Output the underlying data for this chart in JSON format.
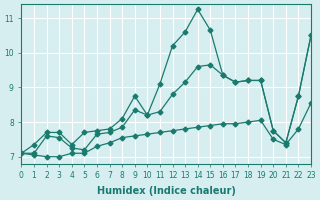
{
  "xlabel": "Humidex (Indice chaleur)",
  "ylabel": "",
  "xlim": [
    0,
    23
  ],
  "ylim": [
    6.8,
    11.4
  ],
  "xticks": [
    0,
    1,
    2,
    3,
    4,
    5,
    6,
    7,
    8,
    9,
    10,
    11,
    12,
    13,
    14,
    15,
    16,
    17,
    18,
    19,
    20,
    21,
    22,
    23
  ],
  "yticks": [
    7,
    8,
    9,
    10,
    11
  ],
  "bg_color": "#d6eef0",
  "line_color": "#1a7a6e",
  "grid_color": "#ffffff",
  "series": {
    "max": {
      "x": [
        0,
        1,
        2,
        3,
        4,
        5,
        6,
        7,
        8,
        9,
        10,
        11,
        12,
        13,
        14,
        15,
        16,
        17,
        18,
        19,
        20,
        21,
        22,
        23
      ],
      "y": [
        7.1,
        7.35,
        7.7,
        7.7,
        7.35,
        7.7,
        7.75,
        7.8,
        8.1,
        8.75,
        8.2,
        9.1,
        10.2,
        10.6,
        11.25,
        10.65,
        9.35,
        9.15,
        9.2,
        9.2,
        7.75,
        7.4,
        8.75,
        10.5
      ]
    },
    "avg": {
      "x": [
        0,
        1,
        2,
        3,
        4,
        5,
        6,
        7,
        8,
        9,
        10,
        11,
        12,
        13,
        14,
        15,
        16,
        17,
        18,
        19,
        20,
        21,
        22,
        23
      ],
      "y": [
        7.1,
        7.1,
        7.6,
        7.55,
        7.25,
        7.2,
        7.65,
        7.7,
        7.85,
        8.35,
        8.2,
        8.3,
        8.8,
        9.15,
        9.6,
        9.65,
        9.35,
        9.15,
        9.2,
        9.2,
        7.75,
        7.4,
        8.75,
        10.5
      ]
    },
    "min": {
      "x": [
        0,
        1,
        2,
        3,
        4,
        5,
        6,
        7,
        8,
        9,
        10,
        11,
        12,
        13,
        14,
        15,
        16,
        17,
        18,
        19,
        20,
        21,
        22,
        23
      ],
      "y": [
        7.1,
        7.05,
        7.0,
        7.0,
        7.1,
        7.1,
        7.3,
        7.4,
        7.55,
        7.6,
        7.65,
        7.7,
        7.75,
        7.8,
        7.85,
        7.9,
        7.95,
        7.95,
        8.0,
        8.05,
        7.5,
        7.35,
        7.8,
        8.55
      ]
    }
  }
}
